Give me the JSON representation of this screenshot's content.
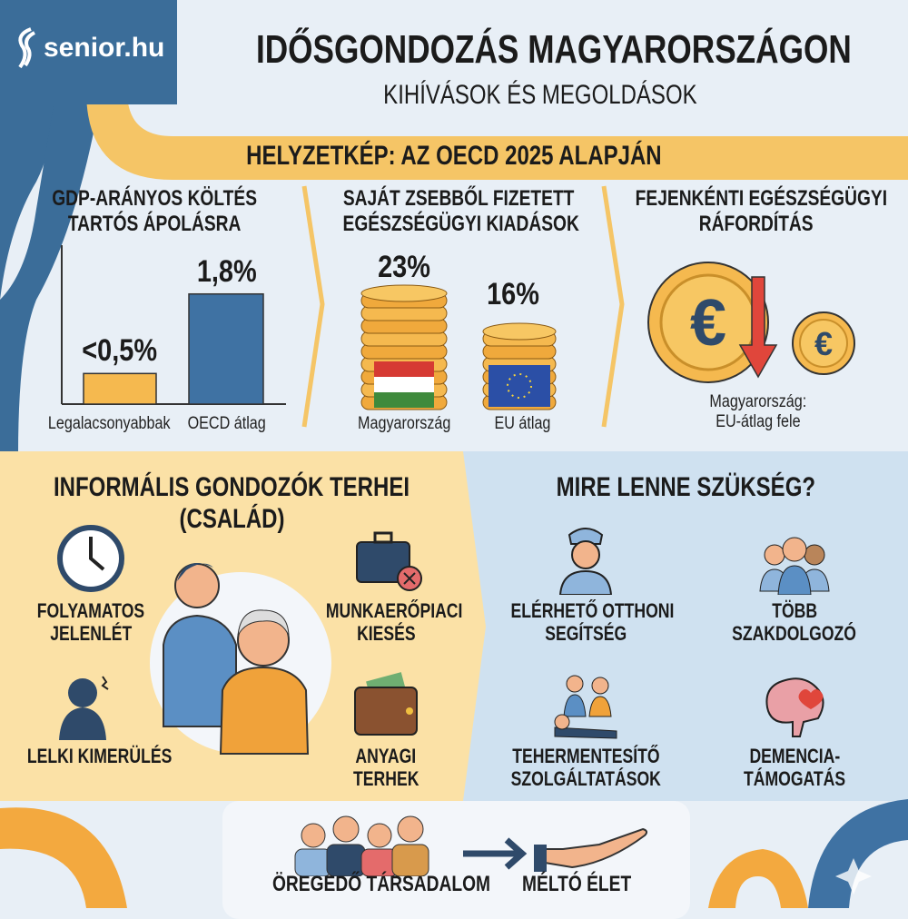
{
  "brand": {
    "logo_text": "senior.hu",
    "color": "#3b6d99"
  },
  "header": {
    "title": "IDŐSGONDOZÁS MAGYARORSZÁGON",
    "subtitle": "KIHÍVÁSOK ÉS MEGOLDÁSOK"
  },
  "band": {
    "title": "HELYZETKÉP: AZ OECD 2025 ALAPJÁN"
  },
  "stats": {
    "gdp": {
      "title_1": "GDP-ARÁNYOS KÖLTÉS",
      "title_2": "TARTÓS ÁPOLÁSRA",
      "bars": [
        {
          "label": "Legalacsonyabbak",
          "value_label": "<0,5%",
          "value": 0.5,
          "color": "#f5b94f"
        },
        {
          "label": "OECD átlag",
          "value_label": "1,8%",
          "value": 1.8,
          "color": "#3f72a3"
        }
      ]
    },
    "oop": {
      "title_1": "SAJÁT ZSEBBŐL FIZETETT",
      "title_2": "EGÉSZSÉGÜGYI KIADÁSOK",
      "items": [
        {
          "label": "Magyarország",
          "value_label": "23%",
          "value": 23
        },
        {
          "label": "EU átlag",
          "value_label": "16%",
          "value": 16
        }
      ]
    },
    "percap": {
      "title_1": "FEJENKÉNTI EGÉSZSÉGÜGYI",
      "title_2": "RÁFORDÍTÁS",
      "note_1": "Magyarország:",
      "note_2": "EU-átlag fele"
    }
  },
  "burdens": {
    "title_1": "INFORMÁLIS GONDOZÓK TERHEI",
    "title_2": "(CSALÁD)",
    "items": [
      {
        "l1": "FOLYAMATOS",
        "l2": "JELENLÉT",
        "icon": "clock-icon"
      },
      {
        "l1": "MUNKAERŐPIACI",
        "l2": "KIESÉS",
        "icon": "briefcase-x-icon"
      },
      {
        "l1": "LELKI KIMERÜLÉS",
        "l2": "",
        "icon": "stressed-person-icon"
      },
      {
        "l1": "ANYAGI",
        "l2": "TERHEK",
        "icon": "wallet-icon"
      }
    ]
  },
  "needs": {
    "title": "MIRE LENNE SZÜKSÉG?",
    "items": [
      {
        "l1": "ELÉRHETŐ OTTHONI",
        "l2": "SEGÍTSÉG",
        "icon": "nurse-icon"
      },
      {
        "l1": "TÖBB",
        "l2": "SZAKDOLGOZÓ",
        "icon": "medical-team-icon"
      },
      {
        "l1": "TEHERMENTESÍTŐ",
        "l2": "SZOLGÁLTATÁSOK",
        "icon": "family-care-icon"
      },
      {
        "l1": "DEMENCIA-",
        "l2": "TÁMOGATÁS",
        "icon": "brain-heart-icon"
      }
    ]
  },
  "footer": {
    "left": "ÖREGEDŐ TÁRSADALOM",
    "right": "MÉLTÓ ÉLET"
  },
  "colors": {
    "yellow": "#f5c566",
    "navy": "#2f4a6a",
    "panel_left": "#fbe1a6",
    "panel_right": "#cfe1f0",
    "red": "#e0463b"
  }
}
